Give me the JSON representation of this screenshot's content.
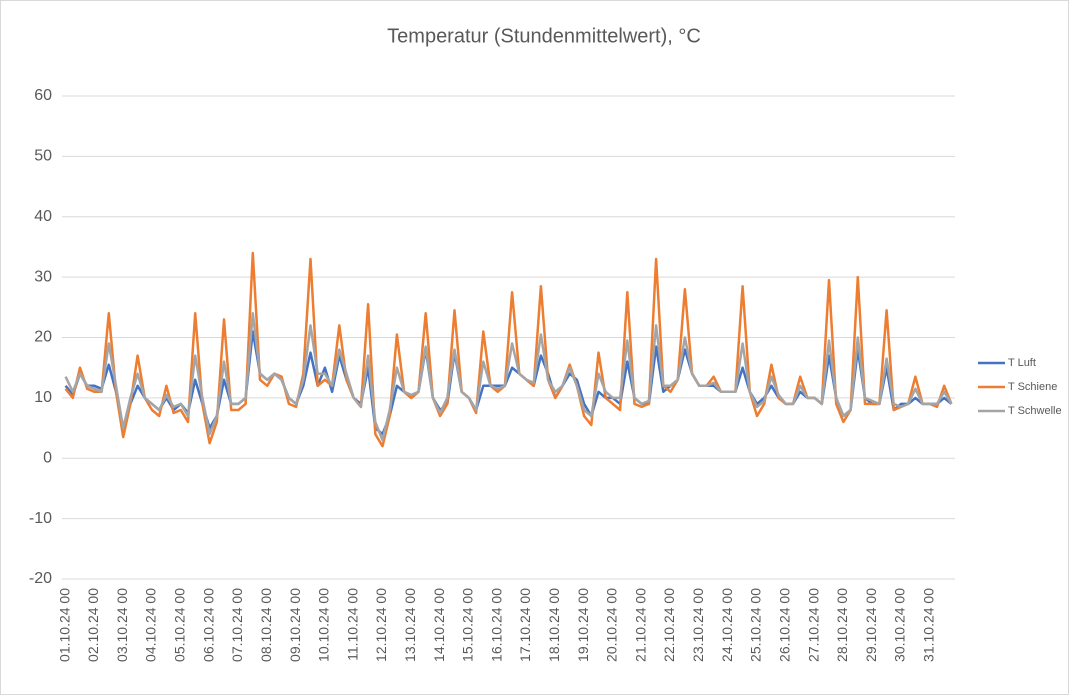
{
  "chart_data": {
    "type": "line",
    "title": "Temperatur (Stundenmittelwert), °C",
    "categories": [
      "01.10.24 00",
      null,
      null,
      null,
      "02.10.24 00",
      null,
      null,
      null,
      "03.10.24 00",
      null,
      null,
      null,
      "04.10.24 00",
      null,
      null,
      null,
      "05.10.24 00",
      null,
      null,
      null,
      "06.10.24 00",
      null,
      null,
      null,
      "07.10.24 00",
      null,
      null,
      null,
      "08.10.24 00",
      null,
      null,
      null,
      "09.10.24 00",
      null,
      null,
      null,
      "10.10.24 00",
      null,
      null,
      null,
      "11.10.24 00",
      null,
      null,
      null,
      "12.10.24 00",
      null,
      null,
      null,
      "13.10.24 00",
      null,
      null,
      null,
      "14.10.24 00",
      null,
      null,
      null,
      "15.10.24 00",
      null,
      null,
      null,
      "16.10.24 00",
      null,
      null,
      null,
      "17.10.24 00",
      null,
      null,
      null,
      "18.10.24 00",
      null,
      null,
      null,
      "19.10.24 00",
      null,
      null,
      null,
      "20.10.24 00",
      null,
      null,
      null,
      "21.10.24 00",
      null,
      null,
      null,
      "22.10.24 00",
      null,
      null,
      null,
      "23.10.24 00",
      null,
      null,
      null,
      "24.10.24 00",
      null,
      null,
      null,
      "25.10.24 00",
      null,
      null,
      null,
      "26.10.24 00",
      null,
      null,
      null,
      "27.10.24 00",
      null,
      null,
      null,
      "28.10.24 00",
      null,
      null,
      null,
      "29.10.24 00",
      null,
      null,
      null,
      "30.10.24 00",
      null,
      null,
      null,
      "31.10.24 00",
      null,
      null,
      null
    ],
    "series": [
      {
        "name": "T Luft",
        "color": "#4472c4",
        "values": [
          12,
          10.5,
          14,
          12,
          12,
          11.5,
          15.5,
          11,
          5,
          9,
          12,
          10,
          9,
          8,
          10,
          8,
          9,
          7.5,
          13,
          9,
          5,
          7,
          13,
          9,
          9,
          10,
          21,
          14,
          13,
          14,
          13,
          10,
          9,
          12,
          17.5,
          12,
          15,
          11,
          17,
          13,
          10,
          9,
          15,
          5,
          4,
          7,
          12,
          11,
          10,
          11,
          18,
          10,
          8,
          9,
          17.5,
          11,
          10,
          8,
          12,
          12,
          12,
          12,
          15,
          14,
          13,
          12,
          17,
          14,
          10,
          12,
          14,
          13,
          9,
          7,
          11,
          10,
          10,
          9,
          16,
          10,
          9,
          9,
          18.5,
          11,
          12,
          13,
          18,
          14,
          12,
          12,
          12,
          11,
          11,
          11,
          15,
          11,
          9,
          10,
          12,
          10,
          9,
          9,
          11,
          10,
          10,
          9,
          17,
          10,
          7,
          8,
          18,
          10,
          9,
          9,
          15,
          8,
          9,
          9,
          10,
          9,
          9,
          9,
          10,
          9
        ]
      },
      {
        "name": "T Schiene",
        "color": "#ed7d31",
        "values": [
          11.5,
          10,
          15,
          11.5,
          11,
          11,
          24,
          11,
          3.5,
          9,
          17,
          10,
          8,
          7,
          12,
          7.5,
          8,
          6,
          24,
          9,
          2.5,
          6,
          23,
          8,
          8,
          9,
          34,
          13,
          12,
          14,
          13.5,
          9,
          8.5,
          14,
          33,
          12,
          13,
          12,
          22,
          13,
          10,
          8.5,
          25.5,
          4,
          2,
          7,
          20.5,
          11,
          10,
          11,
          24,
          10,
          7,
          9,
          24.5,
          11,
          10,
          7.5,
          21,
          12,
          11,
          12,
          27.5,
          14,
          13,
          12,
          28.5,
          13,
          10,
          12,
          15.5,
          12,
          7,
          5.5,
          17.5,
          10,
          9,
          8,
          27.5,
          9,
          8.5,
          9,
          33,
          12,
          11,
          13,
          28,
          14,
          12,
          12,
          13.5,
          11,
          11,
          11,
          28.5,
          11,
          7,
          9,
          15.5,
          10,
          9,
          9,
          13.5,
          10,
          10,
          9,
          29.5,
          9,
          6,
          8,
          30,
          9,
          9,
          9,
          24.5,
          8,
          8.5,
          9,
          13.5,
          9,
          9,
          8.5,
          12,
          9
        ]
      },
      {
        "name": "T Schwelle",
        "color": "#a5a5a5",
        "values": [
          13.5,
          11,
          14,
          12,
          11.5,
          11,
          19,
          12,
          5,
          10,
          14,
          10,
          9,
          8,
          10.5,
          8.5,
          9,
          7,
          17,
          10,
          4,
          7,
          16,
          9,
          9,
          10,
          24,
          14,
          13,
          14,
          13,
          10,
          9,
          13,
          22,
          14,
          14,
          12,
          18,
          14,
          10,
          8.5,
          17,
          6,
          3,
          8,
          15,
          11,
          10.5,
          11,
          18.5,
          10,
          7.5,
          10,
          18,
          11,
          10,
          8,
          16,
          12,
          11.5,
          12,
          19,
          14,
          13,
          12.5,
          20.5,
          13,
          11,
          12,
          15,
          12,
          8,
          7,
          14,
          11,
          10,
          10,
          19.5,
          10,
          9,
          9.5,
          22,
          12,
          12,
          13,
          20,
          14,
          12,
          12,
          12.5,
          11,
          11,
          11,
          19,
          11,
          8.5,
          9.5,
          13.5,
          10.5,
          9,
          9,
          12,
          10,
          10,
          9,
          19.5,
          10,
          7,
          8,
          20,
          10,
          9.5,
          9,
          16.5,
          9,
          8.5,
          9,
          11.5,
          9,
          9,
          9,
          11,
          9
        ]
      }
    ],
    "ylim": [
      -20,
      60
    ],
    "yticks": [
      -20,
      -10,
      0,
      10,
      20,
      30,
      40,
      50,
      60
    ],
    "grid": true,
    "legend": "right"
  }
}
